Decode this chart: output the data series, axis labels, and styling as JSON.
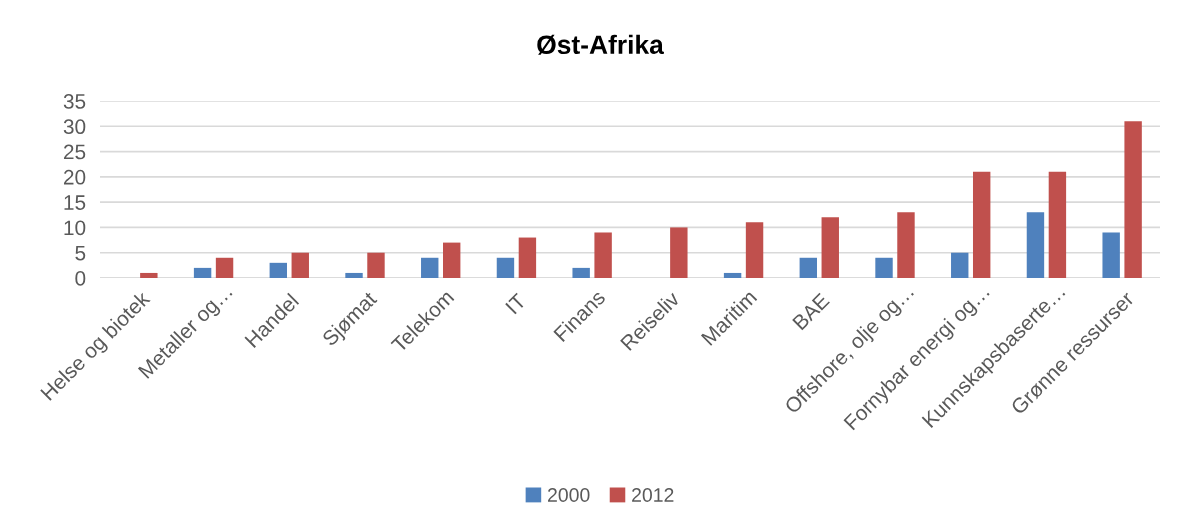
{
  "chart_data": {
    "type": "bar",
    "title": "Øst-Afrika",
    "categories": [
      "Helse og biotek",
      "Metaller og…",
      "Handel",
      "Sjømat",
      "Telekom",
      "IT",
      "Finans",
      "Reiseliv",
      "Maritim",
      "BAE",
      "Offshore, olje og…",
      "Fornybar energi og…",
      "Kunnskapsbaserte…",
      "Grønne ressurser"
    ],
    "series": [
      {
        "name": "2000",
        "color": "#4f81bd",
        "values": [
          0,
          2,
          3,
          1,
          4,
          4,
          2,
          0,
          1,
          4,
          4,
          5,
          13,
          9
        ]
      },
      {
        "name": "2012",
        "color": "#c0504d",
        "values": [
          1,
          4,
          5,
          5,
          7,
          8,
          9,
          10,
          11,
          12,
          13,
          21,
          21,
          31
        ]
      }
    ],
    "ylim": [
      0,
      35
    ],
    "yticks": [
      0,
      5,
      10,
      15,
      20,
      25,
      30,
      35
    ],
    "grid": "y",
    "legend": "bottom"
  }
}
